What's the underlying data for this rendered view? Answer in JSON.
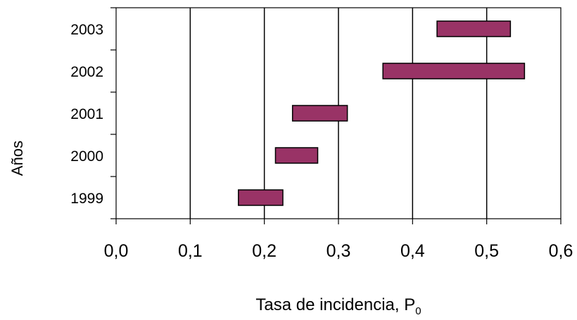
{
  "chart_data": {
    "type": "floating-bar",
    "title": "",
    "xlabel": "Tasa de incidencia, P",
    "xlabel_subscript": "0",
    "ylabel": "Años",
    "xlim": [
      0,
      0.6
    ],
    "xticks": [
      "0,0",
      "0,1",
      "0,2",
      "0,3",
      "0,4",
      "0,5",
      "0,6"
    ],
    "categories": [
      "1999",
      "2000",
      "2001",
      "2002",
      "2003"
    ],
    "ranges": [
      [
        0.165,
        0.225
      ],
      [
        0.215,
        0.272
      ],
      [
        0.238,
        0.312
      ],
      [
        0.36,
        0.551
      ],
      [
        0.433,
        0.532
      ]
    ],
    "bar_color": "#993366",
    "grid": "vertical",
    "legend": "none"
  }
}
